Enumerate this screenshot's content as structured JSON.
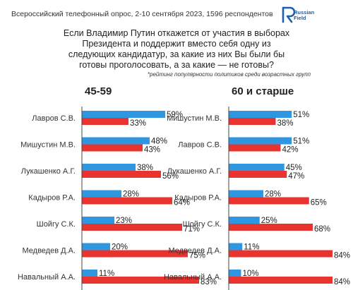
{
  "header": {
    "title": "Всероссийский телефонный опрос, 2-10 сентября 2023, 1596 респондентов",
    "logo_line1": "Russian",
    "logo_line2": "Field"
  },
  "question": {
    "line1": "Если Владимир Путин откажется от участия в выборах",
    "line2": "Президента и поддержит вместо себя одну из",
    "line3": "следующих кандидатур, за какие из них Вы были бы",
    "line4": "готовы проголосовать, а за какие — не готовы?"
  },
  "footnote": "*рейтинг популярности политиков среди возрастных групп",
  "colors": {
    "ready": "#2f97e0",
    "not_ready": "#e8332e"
  },
  "chart_data": [
    {
      "type": "bar",
      "title": "45-59",
      "categories": [
        "Лавров С.В.",
        "Мишустин М.В.",
        "Лукашенко А.Г.",
        "Кадыров Р.А.",
        "Шойгу С.К.",
        "Медведев Д.А.",
        "Навальный А.А."
      ],
      "series": [
        {
          "values": [
            59,
            48,
            38,
            28,
            23,
            20,
            11
          ]
        },
        {
          "values": [
            33,
            43,
            56,
            64,
            71,
            75,
            83
          ]
        }
      ],
      "value_labels": {
        "blue": [
          "59%",
          "48%",
          "38%",
          "28%",
          "23%",
          "20%",
          "11%"
        ],
        "red": [
          "33%",
          "43%",
          "56%",
          "64%",
          "71%",
          "75%",
          "83%"
        ]
      },
      "xlim": [
        0,
        100
      ]
    },
    {
      "type": "bar",
      "title": "60 и старше",
      "categories": [
        "Мишустин М.В.",
        "Лавров С.В.",
        "Лукашенко А.Г.",
        "Кадыров Р.А.",
        "Шойгу С.К.",
        "Медведев Д.А.",
        "Навальный А.А."
      ],
      "series": [
        {
          "values": [
            51,
            51,
            45,
            28,
            25,
            11,
            10
          ]
        },
        {
          "values": [
            38,
            42,
            47,
            65,
            68,
            84,
            84
          ]
        }
      ],
      "value_labels": {
        "blue": [
          "51%",
          "51%",
          "45%",
          "28%",
          "25%",
          "11%",
          "10%"
        ],
        "red": [
          "38%",
          "42%",
          "47%",
          "65%",
          "68%",
          "84%",
          "84%"
        ]
      },
      "xlim": [
        0,
        100
      ]
    }
  ]
}
